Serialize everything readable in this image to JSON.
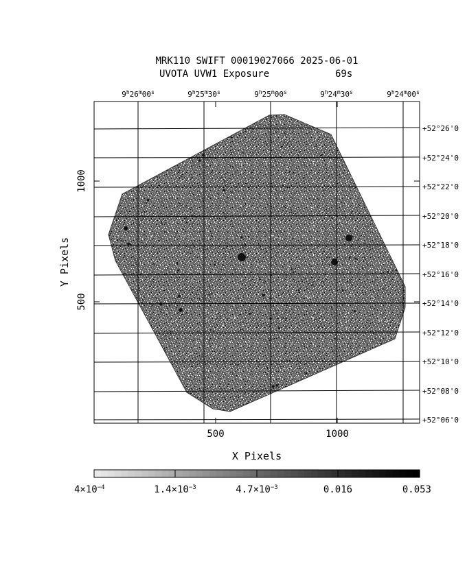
{
  "title": {
    "line1": "MRK110 SWIFT 00019027066 2025-06-01",
    "line2": "UVOTA UVW1 Exposure",
    "exposure": "69s"
  },
  "axes": {
    "xlabel": "X Pixels",
    "ylabel": "Y Pixels",
    "x_ticks": [
      "500",
      "1000"
    ],
    "y_ticks": [
      "500",
      "1000"
    ],
    "ra_ticks": [
      {
        "h": "9",
        "m": "26",
        "s": "00"
      },
      {
        "h": "9",
        "m": "25",
        "s": "30"
      },
      {
        "h": "9",
        "m": "25",
        "s": "00"
      },
      {
        "h": "9",
        "m": "24",
        "s": "30"
      },
      {
        "h": "9",
        "m": "24",
        "s": "00"
      }
    ],
    "dec_ticks": [
      "+52°26'0",
      "+52°24'0",
      "+52°22'0",
      "+52°20'0",
      "+52°18'0",
      "+52°16'0",
      "+52°14'0",
      "+52°12'0",
      "+52°10'0",
      "+52°08'0",
      "+52°06'0"
    ]
  },
  "colorbar": {
    "labels": [
      {
        "mant": "4×10",
        "exp": "−4"
      },
      {
        "mant": "1.4×10",
        "exp": "−3"
      },
      {
        "mant": "4.7×10",
        "exp": "−3"
      },
      {
        "mant": "0.016",
        "exp": ""
      },
      {
        "mant": "0.053",
        "exp": ""
      }
    ]
  },
  "colors": {
    "foreground": "#000000",
    "background": "#ffffff",
    "grid": "#000000"
  }
}
